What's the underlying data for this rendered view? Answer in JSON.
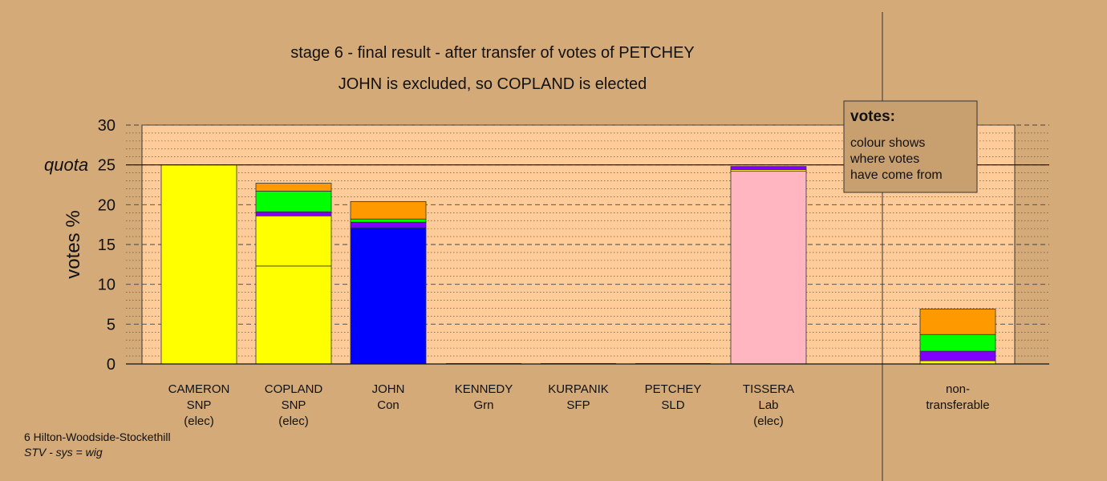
{
  "chart_data": {
    "type": "bar",
    "stacked": true,
    "title": "stage 6 - final result - after transfer of votes of PETCHEY",
    "subtitle": "JOHN is excluded, so COPLAND is elected",
    "ylabel": "votes %",
    "ylim": [
      0,
      30
    ],
    "yticks": [
      "0",
      "5",
      "10",
      "15",
      "20",
      "25",
      "30"
    ],
    "quota_label": "quota",
    "quota_value": 25,
    "grid": "dashed major, dotted minor",
    "categories": [
      {
        "name": "CAMERON",
        "party": "SNP",
        "status": "(elec)"
      },
      {
        "name": "COPLAND",
        "party": "SNP",
        "status": "(elec)"
      },
      {
        "name": "JOHN",
        "party": "Con",
        "status": ""
      },
      {
        "name": "KENNEDY",
        "party": "Grn",
        "status": ""
      },
      {
        "name": "KURPANIK",
        "party": "SFP",
        "status": ""
      },
      {
        "name": "PETCHEY",
        "party": "SLD",
        "status": ""
      },
      {
        "name": "TISSERA",
        "party": "Lab",
        "status": "(elec)"
      },
      {
        "name": "non-",
        "party": "transferable",
        "status": ""
      }
    ],
    "colors": {
      "SNP": "#ffff00",
      "Con": "#0000ff",
      "SLD": "#ff9900",
      "Grn": "#00ff00",
      "SFP": "#7f00ff",
      "Lab": "#ffb6c1"
    },
    "stacks": [
      [
        {
          "from": "SNP",
          "value": 25.0
        }
      ],
      [
        {
          "from": "SNP",
          "value": 12.3
        },
        {
          "from": "SNP",
          "value": 6.3
        },
        {
          "from": "SFP",
          "value": 0.5
        },
        {
          "from": "Grn",
          "value": 2.6
        },
        {
          "from": "SLD",
          "value": 1.0
        }
      ],
      [
        {
          "from": "Con",
          "value": 17.1
        },
        {
          "from": "SFP",
          "value": 0.7
        },
        {
          "from": "Grn",
          "value": 0.4
        },
        {
          "from": "SLD",
          "value": 2.2
        }
      ],
      [],
      [],
      [],
      [
        {
          "from": "Lab",
          "value": 24.2
        },
        {
          "from": "SNP",
          "value": 0.2
        },
        {
          "from": "SFP",
          "value": 0.4
        }
      ],
      [
        {
          "from": "SNP",
          "value": 0.4
        },
        {
          "from": "SFP",
          "value": 1.2
        },
        {
          "from": "Grn",
          "value": 2.1
        },
        {
          "from": "SLD",
          "value": 3.2
        }
      ]
    ]
  },
  "legend": {
    "title": "votes:",
    "lines": [
      "colour shows",
      "where votes",
      "have come from"
    ]
  },
  "footer": {
    "ward": "6 Hilton-Woodside-Stockethill",
    "system": "STV - sys = wig"
  }
}
